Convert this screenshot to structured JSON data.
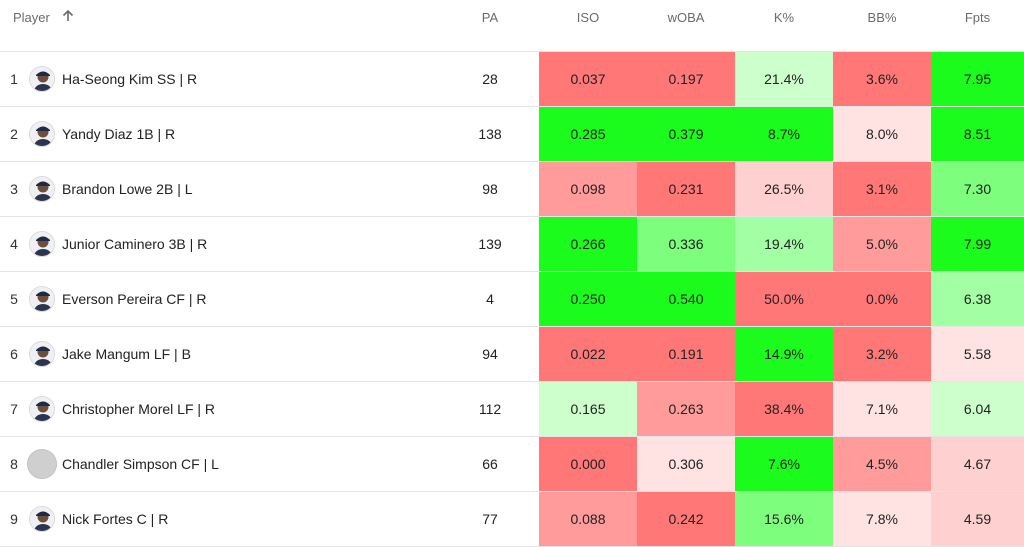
{
  "header": {
    "player": "Player",
    "pa": "PA",
    "iso": "ISO",
    "woba": "wOBA",
    "k_pct": "K%",
    "bb_pct": "BB%",
    "fpts": "Fpts",
    "sort_icon": "arrow-up-icon"
  },
  "colors": {
    "red_strong": "#ff7777",
    "red_medium": "#ff9b9b",
    "red_light": "#ffe2e2",
    "red_faint": "#ffd0d0",
    "green_strong": "#1cfc1c",
    "green_medium": "#7dff7d",
    "green_light": "#a3ffa3",
    "green_faint": "#ccffcc",
    "gray_avatar": "#cfcfcf"
  },
  "rows": [
    {
      "rank": "1",
      "name": "Ha-Seong Kim SS | R",
      "pa": "28",
      "iso": "0.037",
      "woba": "0.197",
      "k": "21.4%",
      "bb": "3.6%",
      "fpts": "7.95",
      "avatar": "player-photo-icon",
      "c": {
        "iso": "#ff7777",
        "woba": "#ff7777",
        "k": "#ccffcc",
        "bb": "#ff7777",
        "fpts": "#1cfc1c"
      }
    },
    {
      "rank": "2",
      "name": "Yandy Diaz 1B | R",
      "pa": "138",
      "iso": "0.285",
      "woba": "0.379",
      "k": "8.7%",
      "bb": "8.0%",
      "fpts": "8.51",
      "avatar": "player-photo-icon",
      "c": {
        "iso": "#1cfc1c",
        "woba": "#1cfc1c",
        "k": "#1cfc1c",
        "bb": "#ffe2e2",
        "fpts": "#1cfc1c"
      }
    },
    {
      "rank": "3",
      "name": "Brandon Lowe 2B | L",
      "pa": "98",
      "iso": "0.098",
      "woba": "0.231",
      "k": "26.5%",
      "bb": "3.1%",
      "fpts": "7.30",
      "avatar": "player-photo-icon",
      "c": {
        "iso": "#ff9b9b",
        "woba": "#ff7777",
        "k": "#ffd0d0",
        "bb": "#ff7777",
        "fpts": "#7dff7d"
      }
    },
    {
      "rank": "4",
      "name": "Junior Caminero 3B | R",
      "pa": "139",
      "iso": "0.266",
      "woba": "0.336",
      "k": "19.4%",
      "bb": "5.0%",
      "fpts": "7.99",
      "avatar": "player-photo-icon",
      "c": {
        "iso": "#1cfc1c",
        "woba": "#7dff7d",
        "k": "#a3ffa3",
        "bb": "#ff9b9b",
        "fpts": "#1cfc1c"
      }
    },
    {
      "rank": "5",
      "name": "Everson Pereira CF | R",
      "pa": "4",
      "iso": "0.250",
      "woba": "0.540",
      "k": "50.0%",
      "bb": "0.0%",
      "fpts": "6.38",
      "avatar": "player-photo-icon",
      "c": {
        "iso": "#1cfc1c",
        "woba": "#1cfc1c",
        "k": "#ff7777",
        "bb": "#ff7777",
        "fpts": "#a3ffa3"
      }
    },
    {
      "rank": "6",
      "name": "Jake Mangum LF | B",
      "pa": "94",
      "iso": "0.022",
      "woba": "0.191",
      "k": "14.9%",
      "bb": "3.2%",
      "fpts": "5.58",
      "avatar": "player-photo-icon",
      "c": {
        "iso": "#ff7777",
        "woba": "#ff7777",
        "k": "#1cfc1c",
        "bb": "#ff7777",
        "fpts": "#ffe2e2"
      }
    },
    {
      "rank": "7",
      "name": "Christopher Morel LF | R",
      "pa": "112",
      "iso": "0.165",
      "woba": "0.263",
      "k": "38.4%",
      "bb": "7.1%",
      "fpts": "6.04",
      "avatar": "player-photo-icon",
      "c": {
        "iso": "#ccffcc",
        "woba": "#ff9b9b",
        "k": "#ff7777",
        "bb": "#ffe2e2",
        "fpts": "#ccffcc"
      }
    },
    {
      "rank": "8",
      "name": "Chandler Simpson CF | L",
      "pa": "66",
      "iso": "0.000",
      "woba": "0.306",
      "k": "7.6%",
      "bb": "4.5%",
      "fpts": "4.67",
      "avatar": "blank-avatar-icon",
      "c": {
        "iso": "#ff7777",
        "woba": "#ffe2e2",
        "k": "#1cfc1c",
        "bb": "#ff9b9b",
        "fpts": "#ffd0d0"
      }
    },
    {
      "rank": "9",
      "name": "Nick Fortes C | R",
      "pa": "77",
      "iso": "0.088",
      "woba": "0.242",
      "k": "15.6%",
      "bb": "7.8%",
      "fpts": "4.59",
      "avatar": "player-photo-icon",
      "c": {
        "iso": "#ff9b9b",
        "woba": "#ff7777",
        "k": "#7dff7d",
        "bb": "#ffe2e2",
        "fpts": "#ffd0d0"
      }
    }
  ]
}
